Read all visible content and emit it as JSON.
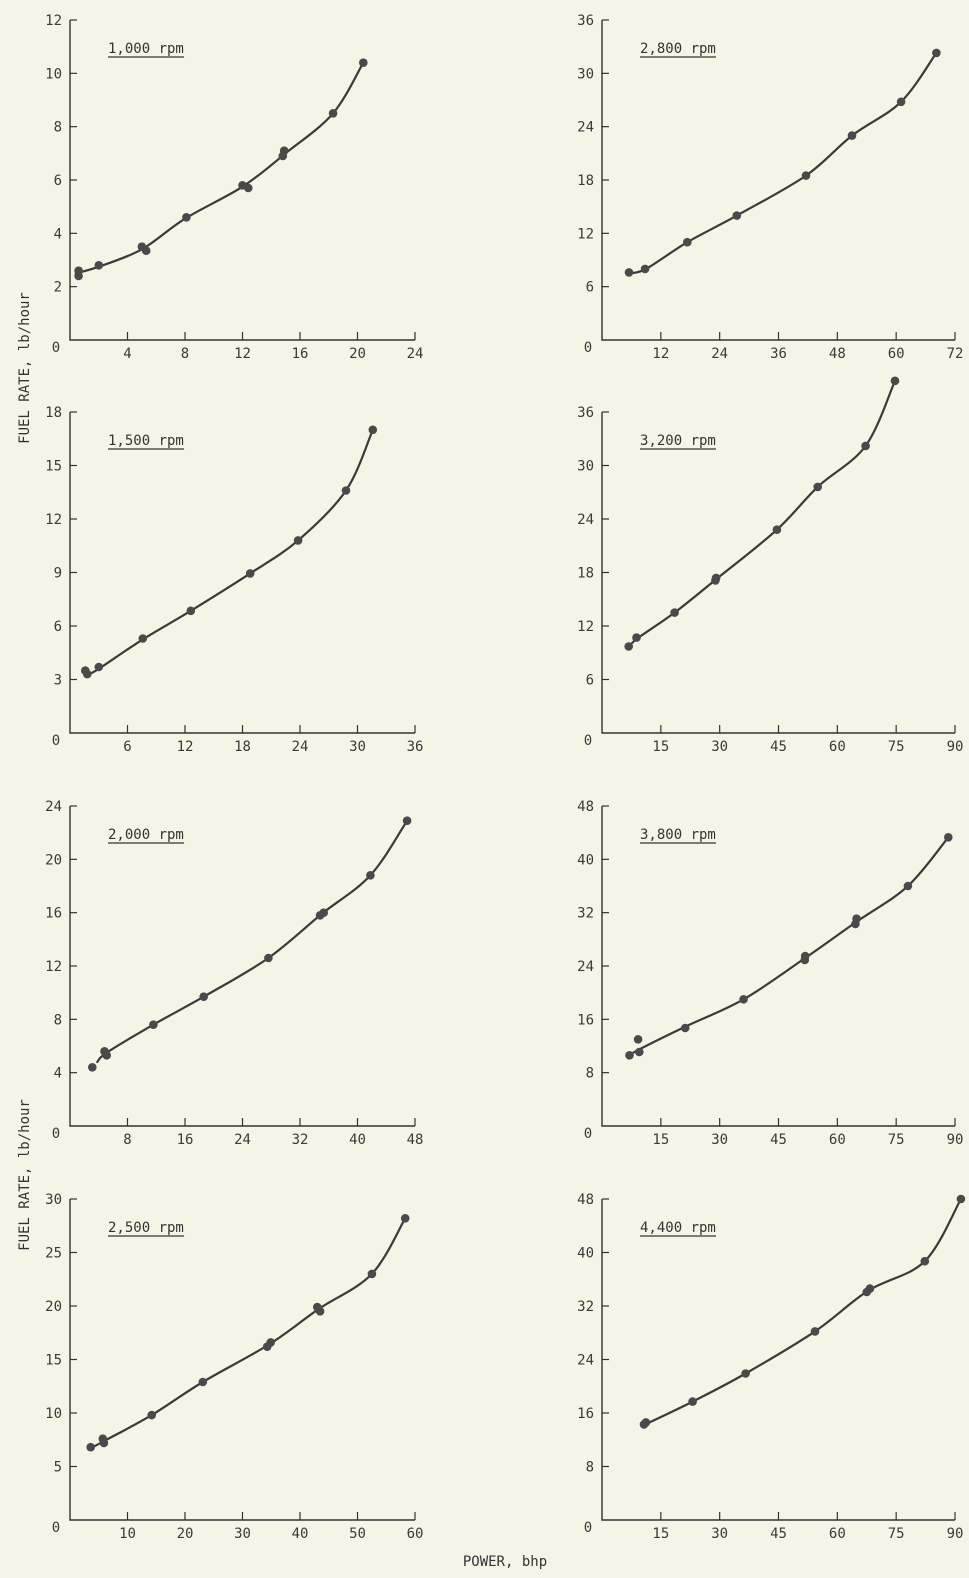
{
  "figure": {
    "ylabel": "FUEL RATE, lb/hour",
    "xlabel": "POWER, bhp"
  },
  "chart_data": [
    {
      "type": "line",
      "title": "1,000 rpm",
      "xlabel": "POWER, bhp",
      "ylabel": "FUEL RATE, lb/hour",
      "xlim": [
        0,
        24
      ],
      "ylim": [
        0,
        12
      ],
      "xticks": [
        4,
        8,
        12,
        16,
        20,
        24
      ],
      "yticks": [
        2,
        4,
        6,
        8,
        10,
        12
      ],
      "x0label": "0",
      "grid": false,
      "points": [
        [
          0.6,
          2.6
        ],
        [
          0.6,
          2.4
        ],
        [
          2.0,
          2.8
        ],
        [
          5.0,
          3.5
        ],
        [
          5.3,
          3.35
        ],
        [
          8.1,
          4.6
        ],
        [
          12.0,
          5.8
        ],
        [
          12.4,
          5.7
        ],
        [
          14.9,
          7.1
        ],
        [
          14.8,
          6.9
        ],
        [
          18.3,
          8.5
        ],
        [
          20.4,
          10.4
        ]
      ],
      "curve": [
        [
          0.4,
          2.5
        ],
        [
          2.0,
          2.75
        ],
        [
          5.0,
          3.4
        ],
        [
          8.0,
          4.55
        ],
        [
          12.0,
          5.75
        ],
        [
          15.0,
          7.0
        ],
        [
          18.3,
          8.5
        ],
        [
          20.4,
          10.4
        ]
      ]
    },
    {
      "type": "line",
      "title": "2,800 rpm",
      "xlabel": "POWER, bhp",
      "ylabel": "FUEL RATE, lb/hour",
      "xlim": [
        0,
        72
      ],
      "ylim": [
        0,
        36
      ],
      "xticks": [
        12,
        24,
        36,
        48,
        60,
        72
      ],
      "yticks": [
        6,
        12,
        18,
        24,
        30,
        36
      ],
      "x0label": "0",
      "grid": false,
      "points": [
        [
          5.5,
          7.6
        ],
        [
          8.8,
          8.0
        ],
        [
          17.4,
          11.0
        ],
        [
          27.5,
          14.0
        ],
        [
          41.6,
          18.5
        ],
        [
          51.0,
          23.0
        ],
        [
          61.0,
          26.8
        ],
        [
          68.2,
          32.3
        ]
      ],
      "curve": [
        [
          5.5,
          7.5
        ],
        [
          9.0,
          8.0
        ],
        [
          17.4,
          11.0
        ],
        [
          27.5,
          14.0
        ],
        [
          41.6,
          18.5
        ],
        [
          51.0,
          23.0
        ],
        [
          61.0,
          26.8
        ],
        [
          68.2,
          32.3
        ]
      ]
    },
    {
      "type": "line",
      "title": "1,500 rpm",
      "xlabel": "POWER, bhp",
      "ylabel": "FUEL RATE, lb/hour",
      "xlim": [
        0,
        36
      ],
      "ylim": [
        0,
        18
      ],
      "xticks": [
        6,
        12,
        18,
        24,
        30,
        36
      ],
      "yticks": [
        3,
        6,
        9,
        12,
        15,
        18
      ],
      "x0label": "0",
      "grid": false,
      "points": [
        [
          1.6,
          3.5
        ],
        [
          1.8,
          3.3
        ],
        [
          3.0,
          3.7
        ],
        [
          7.6,
          5.3
        ],
        [
          12.6,
          6.85
        ],
        [
          18.8,
          8.95
        ],
        [
          23.8,
          10.8
        ],
        [
          28.8,
          13.6
        ],
        [
          31.6,
          17.0
        ]
      ],
      "curve": [
        [
          1.6,
          3.2
        ],
        [
          3.0,
          3.6
        ],
        [
          7.6,
          5.25
        ],
        [
          12.6,
          6.85
        ],
        [
          18.8,
          8.95
        ],
        [
          23.8,
          10.8
        ],
        [
          28.8,
          13.6
        ],
        [
          31.6,
          17.0
        ]
      ]
    },
    {
      "type": "line",
      "title": "3,200 rpm",
      "xlabel": "POWER, bhp",
      "ylabel": "FUEL RATE, lb/hour",
      "xlim": [
        0,
        90
      ],
      "ylim": [
        0,
        36
      ],
      "xticks": [
        15,
        30,
        45,
        60,
        75,
        90
      ],
      "yticks": [
        6,
        12,
        18,
        24,
        30,
        36
      ],
      "x0label": "0",
      "grid": false,
      "points": [
        [
          6.8,
          9.7
        ],
        [
          8.8,
          10.7
        ],
        [
          18.5,
          13.5
        ],
        [
          28.9,
          17.1
        ],
        [
          29.1,
          17.4
        ],
        [
          44.6,
          22.8
        ],
        [
          55.0,
          27.6
        ],
        [
          67.2,
          32.2
        ],
        [
          74.7,
          39.5
        ]
      ],
      "curve": [
        [
          6.8,
          9.6
        ],
        [
          9.0,
          10.6
        ],
        [
          18.5,
          13.5
        ],
        [
          29.0,
          17.2
        ],
        [
          44.6,
          22.8
        ],
        [
          55.0,
          27.6
        ],
        [
          67.2,
          32.2
        ],
        [
          74.7,
          39.5
        ]
      ]
    },
    {
      "type": "line",
      "title": "2,000 rpm",
      "xlabel": "POWER, bhp",
      "ylabel": "FUEL RATE, lb/hour",
      "xlim": [
        0,
        48
      ],
      "ylim": [
        0,
        24
      ],
      "xticks": [
        8,
        16,
        24,
        32,
        40,
        48
      ],
      "yticks": [
        4,
        8,
        12,
        16,
        20,
        24
      ],
      "x0label": "0",
      "grid": false,
      "points": [
        [
          3.1,
          4.4
        ],
        [
          4.8,
          5.6
        ],
        [
          5.1,
          5.3
        ],
        [
          11.6,
          7.6
        ],
        [
          18.6,
          9.7
        ],
        [
          27.6,
          12.6
        ],
        [
          34.8,
          15.8
        ],
        [
          35.3,
          16.0
        ],
        [
          41.8,
          18.8
        ],
        [
          46.9,
          22.9
        ]
      ],
      "curve": [
        [
          3.8,
          4.8
        ],
        [
          5.1,
          5.5
        ],
        [
          11.6,
          7.6
        ],
        [
          18.6,
          9.7
        ],
        [
          27.6,
          12.6
        ],
        [
          35.0,
          15.9
        ],
        [
          41.8,
          18.8
        ],
        [
          46.9,
          22.9
        ]
      ]
    },
    {
      "type": "line",
      "title": "3,800 rpm",
      "xlabel": "POWER, bhp",
      "ylabel": "FUEL RATE, lb/hour",
      "xlim": [
        0,
        90
      ],
      "ylim": [
        0,
        48
      ],
      "xticks": [
        15,
        30,
        45,
        60,
        75,
        90
      ],
      "yticks": [
        8,
        16,
        24,
        32,
        40,
        48
      ],
      "x0label": "0",
      "grid": false,
      "points": [
        [
          7.0,
          10.6
        ],
        [
          9.5,
          11.1
        ],
        [
          9.2,
          13.0
        ],
        [
          21.2,
          14.7
        ],
        [
          36.1,
          19.0
        ],
        [
          51.7,
          24.9
        ],
        [
          51.8,
          25.5
        ],
        [
          64.6,
          30.3
        ],
        [
          64.9,
          31.1
        ],
        [
          78.0,
          36.0
        ],
        [
          88.3,
          43.3
        ]
      ],
      "curve": [
        [
          7.0,
          10.5
        ],
        [
          9.2,
          11.4
        ],
        [
          21.2,
          14.9
        ],
        [
          36.1,
          19.0
        ],
        [
          51.8,
          25.2
        ],
        [
          64.8,
          30.6
        ],
        [
          78.0,
          36.0
        ],
        [
          88.3,
          43.3
        ]
      ]
    },
    {
      "type": "line",
      "title": "2,500 rpm",
      "xlabel": "POWER, bhp",
      "ylabel": "FUEL RATE, lb/hour",
      "xlim": [
        0,
        60
      ],
      "ylim": [
        0,
        30
      ],
      "xticks": [
        10,
        20,
        30,
        40,
        50,
        60
      ],
      "yticks": [
        5,
        10,
        15,
        20,
        25,
        30
      ],
      "x0label": "0",
      "grid": false,
      "points": [
        [
          3.6,
          6.8
        ],
        [
          5.7,
          7.6
        ],
        [
          5.9,
          7.2
        ],
        [
          14.2,
          9.8
        ],
        [
          23.1,
          12.9
        ],
        [
          34.3,
          16.2
        ],
        [
          34.9,
          16.6
        ],
        [
          43.0,
          19.9
        ],
        [
          43.5,
          19.5
        ],
        [
          52.5,
          23.0
        ],
        [
          58.3,
          28.2
        ]
      ],
      "curve": [
        [
          3.6,
          6.7
        ],
        [
          6.0,
          7.4
        ],
        [
          14.2,
          9.8
        ],
        [
          23.1,
          12.9
        ],
        [
          34.6,
          16.4
        ],
        [
          43.2,
          19.7
        ],
        [
          52.5,
          23.0
        ],
        [
          58.3,
          28.2
        ]
      ]
    },
    {
      "type": "line",
      "title": "4,400 rpm",
      "xlabel": "POWER, bhp",
      "ylabel": "FUEL RATE, lb/hour",
      "xlim": [
        0,
        90
      ],
      "ylim": [
        0,
        48
      ],
      "xticks": [
        15,
        30,
        45,
        60,
        75,
        90
      ],
      "yticks": [
        8,
        16,
        24,
        32,
        40,
        48
      ],
      "x0label": "0",
      "grid": false,
      "points": [
        [
          10.7,
          14.3
        ],
        [
          11.2,
          14.6
        ],
        [
          23.1,
          17.7
        ],
        [
          36.6,
          21.9
        ],
        [
          54.3,
          28.2
        ],
        [
          67.5,
          34.1
        ],
        [
          68.3,
          34.6
        ],
        [
          82.3,
          38.7
        ],
        [
          91.5,
          48.0
        ]
      ],
      "curve": [
        [
          10.7,
          14.2
        ],
        [
          23.1,
          17.7
        ],
        [
          36.6,
          21.9
        ],
        [
          54.3,
          28.2
        ],
        [
          67.9,
          34.3
        ],
        [
          82.3,
          38.7
        ],
        [
          91.5,
          48.0
        ]
      ]
    }
  ]
}
